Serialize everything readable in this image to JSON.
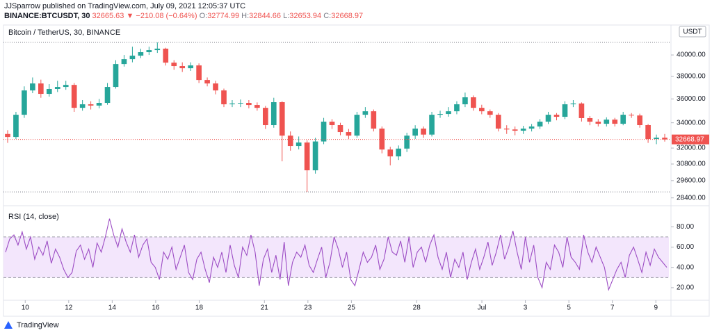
{
  "header": {
    "publisher": "JJSparrow published on TradingView.com, July 09, 2021 12:05:37 UTC",
    "symbol": "BINANCE:BTCUSDT, 30",
    "last": "32665.63",
    "change": "▼ −210.08 (−0.64%)",
    "o_label": "O:",
    "o": "32774.99",
    "h_label": "H:",
    "h": "32844.66",
    "l_label": "L:",
    "l": "32653.94",
    "c_label": "C:",
    "c": "32668.97"
  },
  "footer": "TradingView",
  "chart_data": [
    {
      "type": "candlestick",
      "title": "Bitcoin / TetherUS, 30, BINANCE",
      "currency": "USDT",
      "up_color": "#26a69a",
      "down_color": "#ef5350",
      "log_scale": true,
      "xlim": [
        0,
        30.6
      ],
      "ylim": [
        28010,
        42690
      ],
      "yticks": [
        {
          "value": 28400,
          "label": "28400.00"
        },
        {
          "value": 29600,
          "label": "29600.00"
        },
        {
          "value": 30800,
          "label": "30800.00"
        },
        {
          "value": 32000,
          "label": "32000.00"
        },
        {
          "value": 34000,
          "label": "34000.00"
        },
        {
          "value": 36000,
          "label": "36000.00"
        },
        {
          "value": 38000,
          "label": "38000.00"
        },
        {
          "value": 40000,
          "label": "40000.00"
        }
      ],
      "open": [
        33100,
        32860,
        34660,
        36740,
        37360,
        36440,
        36870,
        37050,
        37230,
        35240,
        35540,
        35430,
        35660,
        37050,
        39140,
        39600,
        39930,
        40270,
        40470,
        40610,
        39270,
        38950,
        38750,
        39010,
        37670,
        37360,
        36740,
        35540,
        35610,
        35660,
        35480,
        35240,
        33810,
        35720,
        32970,
        32160,
        32430,
        30340,
        32510,
        34090,
        33810,
        33250,
        32970,
        34660,
        34950,
        33530,
        31890,
        31370,
        31960,
        32970,
        33530,
        33050,
        34660,
        34720,
        34950,
        35540,
        36140,
        35240,
        34950,
        34660,
        33530,
        33460,
        33360,
        33530,
        33700,
        34090,
        34660,
        34490,
        35540,
        35610,
        34380,
        34090,
        33920,
        34260,
        33920,
        34660,
        34600,
        33810,
        32700,
        32810
      ],
      "high": [
        33400,
        34900,
        37100,
        37900,
        37700,
        37300,
        37600,
        37600,
        37400,
        35900,
        35800,
        36000,
        37400,
        39500,
        40000,
        40800,
        40600,
        40800,
        41220,
        40700,
        39500,
        39300,
        39300,
        39200,
        37900,
        37600,
        36900,
        35900,
        35950,
        35900,
        35700,
        35400,
        36100,
        35800,
        33300,
        32900,
        32600,
        32800,
        34400,
        34300,
        34000,
        33500,
        34900,
        35300,
        35100,
        33700,
        32100,
        32200,
        33200,
        33800,
        33700,
        34900,
        35000,
        35300,
        35800,
        36550,
        36300,
        35500,
        35100,
        34800,
        33800,
        33700,
        33750,
        33900,
        34300,
        34900,
        34800,
        35800,
        35900,
        35700,
        34550,
        34300,
        34450,
        34400,
        34900,
        34800,
        34750,
        33900,
        33050,
        33100
      ],
      "low": [
        32400,
        32700,
        34400,
        36500,
        36100,
        36200,
        36600,
        36800,
        34900,
        35000,
        35100,
        35200,
        35500,
        36900,
        38900,
        39300,
        39700,
        40000,
        40200,
        39000,
        38600,
        38400,
        38500,
        37400,
        37100,
        36400,
        35300,
        35300,
        35300,
        35200,
        35000,
        33500,
        33600,
        31000,
        31800,
        31900,
        28810,
        30100,
        32300,
        33500,
        33000,
        32700,
        32800,
        34400,
        33300,
        31600,
        30700,
        31100,
        31700,
        32700,
        32800,
        32900,
        34400,
        34500,
        34700,
        35300,
        35000,
        34700,
        34400,
        33300,
        33100,
        33000,
        33100,
        33300,
        33500,
        33900,
        34200,
        34300,
        35300,
        34100,
        33800,
        33700,
        33700,
        33700,
        33800,
        34400,
        33600,
        32400,
        32300,
        32500
      ],
      "close": [
        32860,
        34660,
        36740,
        37360,
        36440,
        36870,
        37050,
        37230,
        35240,
        35540,
        35430,
        35660,
        37050,
        39140,
        39600,
        39930,
        40270,
        40470,
        40610,
        39270,
        38950,
        38750,
        39010,
        37670,
        37360,
        36740,
        35540,
        35610,
        35660,
        35480,
        35240,
        33810,
        35720,
        32970,
        32160,
        32430,
        30340,
        32510,
        34090,
        33810,
        33250,
        32970,
        34660,
        34950,
        33530,
        31890,
        31370,
        31960,
        32970,
        33530,
        33050,
        34660,
        34720,
        34950,
        35540,
        36140,
        35240,
        34950,
        34660,
        33530,
        33460,
        33360,
        33530,
        33700,
        34090,
        34660,
        34490,
        35540,
        35610,
        34380,
        34090,
        33920,
        34260,
        33920,
        34660,
        34600,
        33810,
        32700,
        32810,
        32668.97
      ]
    },
    {
      "type": "line",
      "title": "RSI (14, close)",
      "color": "#9c4cc4",
      "band": [
        30,
        70
      ],
      "band_color": "#f3e6fc",
      "xlim": [
        0,
        30.6
      ],
      "ylim": [
        9,
        98
      ],
      "yticks": [
        {
          "value": 20,
          "label": "20.00"
        },
        {
          "value": 40,
          "label": "40.00"
        },
        {
          "value": 60,
          "label": "60.00"
        },
        {
          "value": 80,
          "label": "80.00"
        }
      ],
      "xticks": [
        {
          "value": 1,
          "label": "10"
        },
        {
          "value": 3,
          "label": "12"
        },
        {
          "value": 5,
          "label": "14"
        },
        {
          "value": 7,
          "label": "16"
        },
        {
          "value": 9,
          "label": "18"
        },
        {
          "value": 12,
          "label": "21"
        },
        {
          "value": 14,
          "label": "23"
        },
        {
          "value": 16,
          "label": "25"
        },
        {
          "value": 19,
          "label": "28"
        },
        {
          "value": 22,
          "label": "Jul"
        },
        {
          "value": 24,
          "label": "3"
        },
        {
          "value": 26,
          "label": "5"
        },
        {
          "value": 28,
          "label": "7"
        },
        {
          "value": 30,
          "label": "9"
        }
      ],
      "values": [
        55,
        68,
        72,
        62,
        75,
        58,
        70,
        48,
        60,
        52,
        66,
        44,
        58,
        50,
        38,
        30,
        35,
        56,
        62,
        48,
        58,
        40,
        64,
        55,
        70,
        88,
        72,
        60,
        78,
        65,
        55,
        72,
        50,
        62,
        68,
        45,
        40,
        28,
        55,
        48,
        60,
        38,
        50,
        62,
        35,
        28,
        48,
        55,
        38,
        25,
        50,
        40,
        55,
        35,
        62,
        42,
        30,
        60,
        52,
        72,
        55,
        22,
        48,
        58,
        35,
        52,
        28,
        65,
        22,
        45,
        55,
        50,
        62,
        42,
        35,
        48,
        60,
        30,
        45,
        70,
        58,
        40,
        55,
        28,
        22,
        38,
        55,
        45,
        50,
        62,
        38,
        48,
        70,
        55,
        52,
        66,
        45,
        70,
        40,
        55,
        60,
        45,
        62,
        72,
        50,
        38,
        55,
        30,
        48,
        40,
        55,
        28,
        45,
        58,
        38,
        50,
        65,
        42,
        55,
        72,
        48,
        60,
        76,
        55,
        38,
        70,
        45,
        62,
        30,
        20,
        45,
        38,
        62,
        55,
        40,
        70,
        50,
        45,
        38,
        72,
        55,
        45,
        60,
        50,
        40,
        18,
        28,
        38,
        45,
        30,
        52,
        60,
        48,
        35,
        55,
        42,
        58,
        50,
        45,
        40
      ]
    }
  ]
}
